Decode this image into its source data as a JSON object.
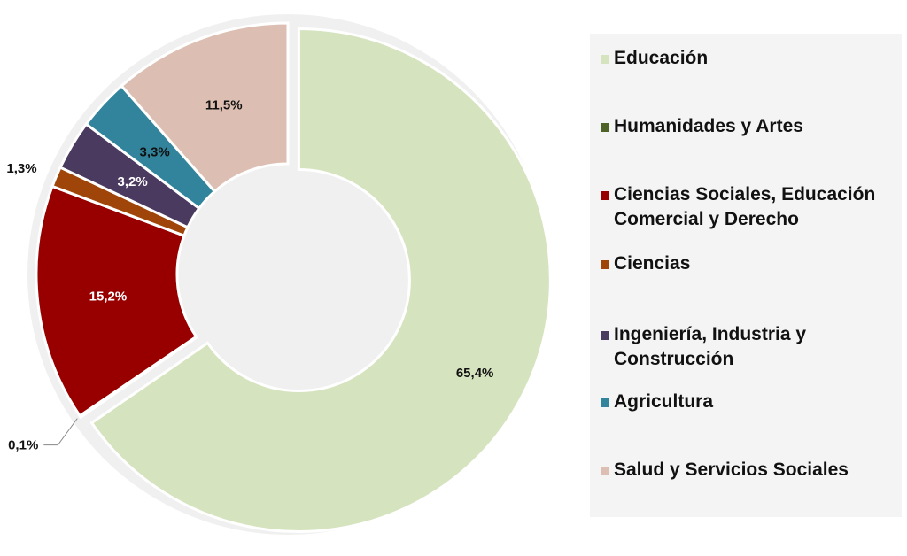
{
  "chart_data": {
    "type": "donut",
    "title": "",
    "categories": [
      "Educación",
      "Humanidades y Artes",
      "Ciencias Sociales, Educación Comercial y Derecho",
      "Ciencias",
      "Ingeniería, Industria y Construcción",
      "Agricultura",
      "Salud y Servicios Sociales"
    ],
    "values": [
      65.4,
      0.1,
      15.2,
      1.3,
      3.2,
      3.3,
      11.5
    ],
    "labels": [
      "65,4%",
      "0,1%",
      "15,2%",
      "1,3%",
      "3,2%",
      "3,3%",
      "11,5%"
    ],
    "colors": [
      "#d6e3bf",
      "#4f6228",
      "#980000",
      "#a0450a",
      "#4b3a60",
      "#31849b",
      "#dcbfb2"
    ],
    "label_colors": [
      "#111111",
      "#111111",
      "#ffffff",
      "#111111",
      "#ffffff",
      "#111111",
      "#111111"
    ],
    "exploded": "Educación",
    "legend_position": "right"
  }
}
